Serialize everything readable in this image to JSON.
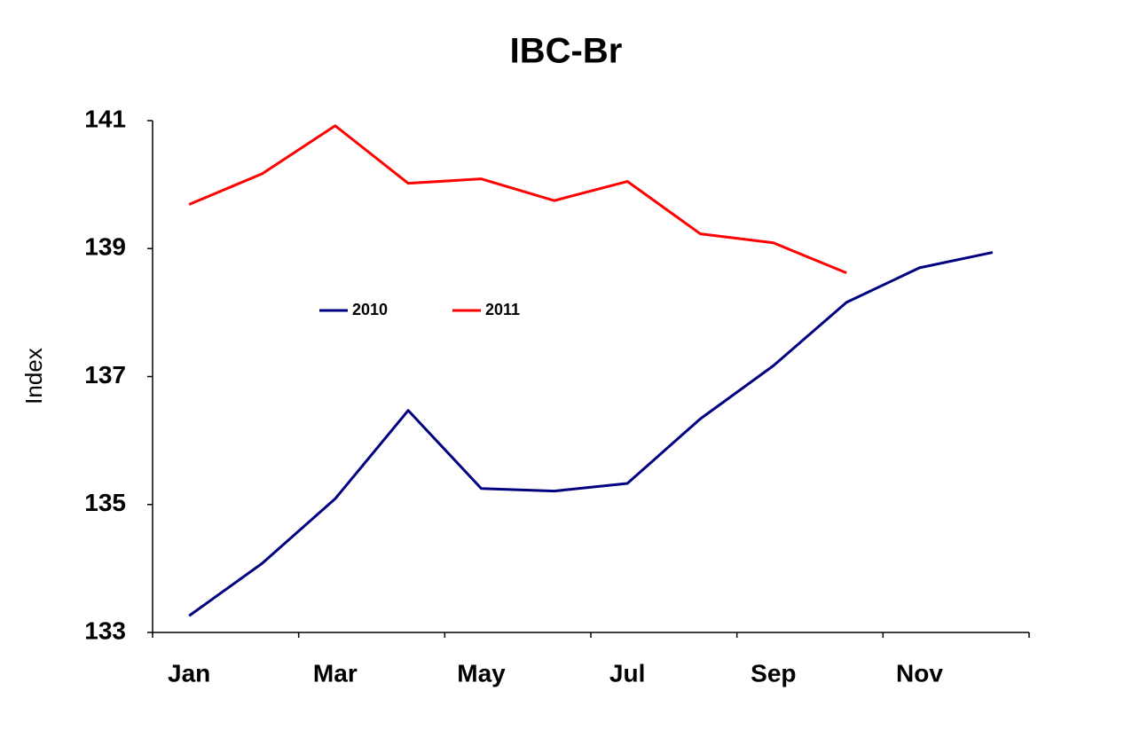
{
  "chart_data": {
    "type": "line",
    "title": "IBC-Br",
    "y_label": "Index",
    "categories": [
      "Jan",
      null,
      "Mar",
      null,
      "May",
      null,
      "Jul",
      null,
      "Sep",
      null,
      "Nov",
      null
    ],
    "series": [
      {
        "name": "2010",
        "color": "#000080",
        "values": [
          133.26,
          134.08,
          135.09,
          136.47,
          135.25,
          135.21,
          135.33,
          136.34,
          137.17,
          138.16,
          138.7,
          138.94
        ]
      },
      {
        "name": "2011",
        "color": "#ff0000",
        "values": [
          139.69,
          140.17,
          140.92,
          140.02,
          140.09,
          139.75,
          140.05,
          139.23,
          139.09,
          138.62,
          null,
          null
        ]
      }
    ],
    "ylim": [
      133,
      141
    ],
    "yticks": [
      133,
      135,
      137,
      139,
      141
    ],
    "grid": false,
    "legend": "center left"
  }
}
